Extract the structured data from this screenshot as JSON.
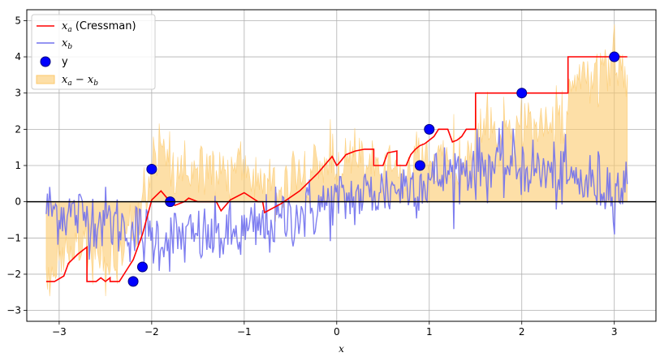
{
  "chart_data": {
    "type": "line",
    "xlabel": "x",
    "ylabel": "",
    "title": "",
    "xlim": [
      -3.35,
      3.45
    ],
    "ylim": [
      -3.3,
      5.3
    ],
    "xticks": [
      -3,
      -2,
      -1,
      0,
      1,
      2,
      3
    ],
    "yticks": [
      -3,
      -2,
      -1,
      0,
      1,
      2,
      3,
      4,
      5
    ],
    "grid": true,
    "legend_position": "top-left",
    "colors": {
      "xa": "#ff0000",
      "xb": "#7070ee",
      "y_face": "#0000ff",
      "y_edge": "#000080",
      "diff": "#fcc96c",
      "zero_line": "#000000",
      "grid": "#b0b0b0"
    },
    "legend": [
      {
        "key": "xa",
        "label_main": "x",
        "label_sub": "a",
        "label_rest": " (Cressman)"
      },
      {
        "key": "xb",
        "label_main": "x",
        "label_sub": "b",
        "label_rest": ""
      },
      {
        "key": "y",
        "label_main": "y",
        "label_sub": "",
        "label_rest": ""
      },
      {
        "key": "diff",
        "label_main": "x",
        "label_sub": "a",
        "label_mid": " − x",
        "label_sub2": "b"
      }
    ],
    "observations": {
      "x": [
        -2.2,
        -2.1,
        -2.0,
        -1.8,
        0.9,
        1.0,
        2.0,
        3.0
      ],
      "y": [
        -2.2,
        -1.8,
        0.9,
        0.0,
        1.0,
        2.0,
        3.0,
        4.0
      ]
    },
    "xa_cressman": {
      "x": [
        -3.14,
        -3.05,
        -2.95,
        -2.9,
        -2.8,
        -2.7,
        -2.7,
        -2.6,
        -2.55,
        -2.5,
        -2.45,
        -2.45,
        -2.35,
        -2.3,
        -2.25,
        -2.2,
        -2.1,
        -2.0,
        -1.9,
        -1.8,
        -1.75,
        -1.65,
        -1.6,
        -1.5,
        -1.3,
        -1.25,
        -1.2,
        -1.15,
        -1.0,
        -0.85,
        -0.8,
        -0.78,
        -0.6,
        -0.4,
        -0.2,
        -0.1,
        -0.05,
        0.0,
        0.02,
        0.1,
        0.2,
        0.3,
        0.4,
        0.4,
        0.5,
        0.55,
        0.65,
        0.65,
        0.75,
        0.8,
        0.85,
        0.9,
        0.95,
        1.0,
        1.05,
        1.1,
        1.15,
        1.2,
        1.25,
        1.25,
        1.3,
        1.35,
        1.4,
        1.45,
        1.5,
        1.5,
        1.6,
        1.8,
        2.0,
        2.2,
        2.4,
        2.5,
        2.5,
        2.7,
        2.9,
        3.0,
        3.14
      ],
      "y": [
        -2.2,
        -2.2,
        -2.05,
        -1.7,
        -1.45,
        -1.25,
        -2.2,
        -2.2,
        -2.1,
        -2.2,
        -2.1,
        -2.2,
        -2.2,
        -2.0,
        -1.8,
        -1.6,
        -0.9,
        0.05,
        0.3,
        0.0,
        -0.1,
        0.0,
        0.1,
        0.0,
        0.0,
        -0.25,
        -0.1,
        0.05,
        0.25,
        0.0,
        0.0,
        -0.3,
        -0.05,
        0.3,
        0.8,
        1.1,
        1.25,
        1.0,
        1.05,
        1.3,
        1.4,
        1.45,
        1.45,
        1.0,
        1.0,
        1.35,
        1.4,
        1.0,
        1.0,
        1.3,
        1.45,
        1.55,
        1.6,
        1.7,
        1.8,
        2.0,
        2.0,
        2.0,
        1.65,
        1.65,
        1.7,
        1.8,
        2.0,
        2.0,
        2.0,
        3.0,
        3.0,
        3.0,
        3.0,
        3.0,
        3.0,
        3.0,
        4.0,
        4.0,
        4.0,
        4.0,
        4.0
      ]
    },
    "xb_background": {
      "x_start": -3.14,
      "x_end": 3.14,
      "count": 500,
      "trend": {
        "x": [
          -3.14,
          -2.5,
          -2.0,
          -1.5,
          -1.0,
          -0.5,
          0.0,
          0.5,
          1.0,
          1.5,
          2.0,
          2.5,
          3.14
        ],
        "y": [
          -0.2,
          -0.5,
          -1.0,
          -1.0,
          -0.9,
          -0.4,
          0.0,
          0.3,
          0.6,
          1.0,
          1.0,
          0.6,
          0.35
        ]
      },
      "noise_amplitude": 0.45
    }
  }
}
